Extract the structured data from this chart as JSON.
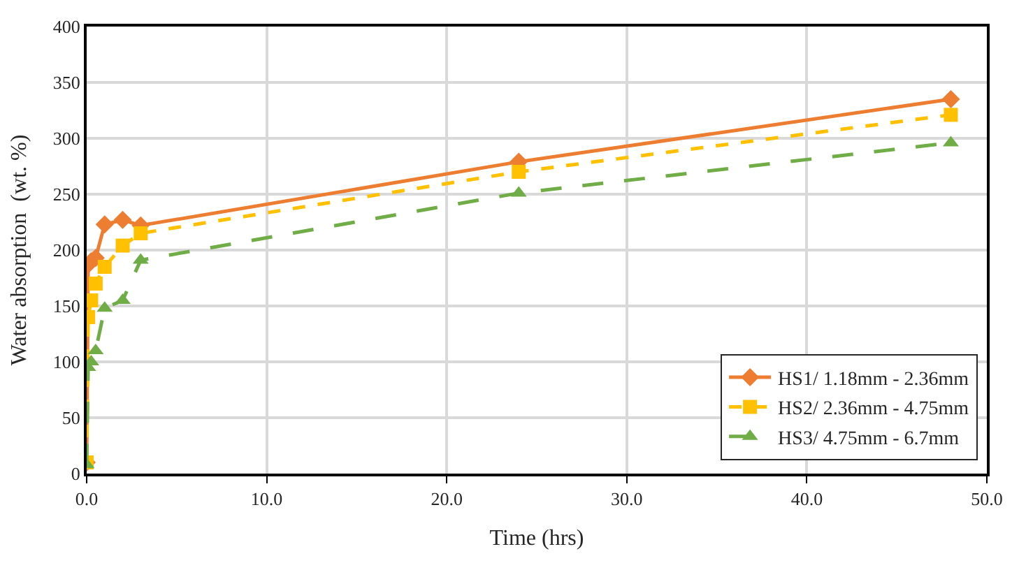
{
  "chart_data": {
    "type": "line",
    "xlabel": "Time (hrs)",
    "ylabel": "Water absorption  (wt. %)",
    "x": [
      0,
      0.083,
      0.25,
      0.5,
      1,
      2,
      3,
      24,
      48
    ],
    "series": [
      {
        "name": "HS1/ 1.18mm - 2.36mm",
        "color": "#ed7d31",
        "marker": "diamond",
        "line_style": "solid",
        "values": [
          10,
          187,
          190,
          193,
          223,
          227,
          222,
          279,
          335
        ]
      },
      {
        "name": "HS2/ 2.36mm - 4.75mm",
        "color": "#ffc000",
        "marker": "square",
        "line_style": "dotted",
        "values": [
          10,
          140,
          155,
          170,
          185,
          204,
          215,
          270,
          321
        ]
      },
      {
        "name": "HS3/ 4.75mm - 6.7mm",
        "color": "#70ad47",
        "marker": "triangle",
        "line_style": "dashed",
        "values": [
          8,
          95,
          100,
          110,
          148,
          155,
          191,
          251,
          296
        ]
      }
    ],
    "xlim": [
      0,
      50
    ],
    "xticks": [
      {
        "value": 0,
        "label": "0.0"
      },
      {
        "value": 10,
        "label": "10.0"
      },
      {
        "value": 20,
        "label": "20.0"
      },
      {
        "value": 30,
        "label": "30.0"
      },
      {
        "value": 40,
        "label": "40.0"
      },
      {
        "value": 50,
        "label": "50.0"
      }
    ],
    "ylim": [
      0,
      400
    ],
    "yticks": [
      0,
      50,
      100,
      150,
      200,
      250,
      300,
      350,
      400
    ],
    "grid": true,
    "legend": "bottom right"
  }
}
